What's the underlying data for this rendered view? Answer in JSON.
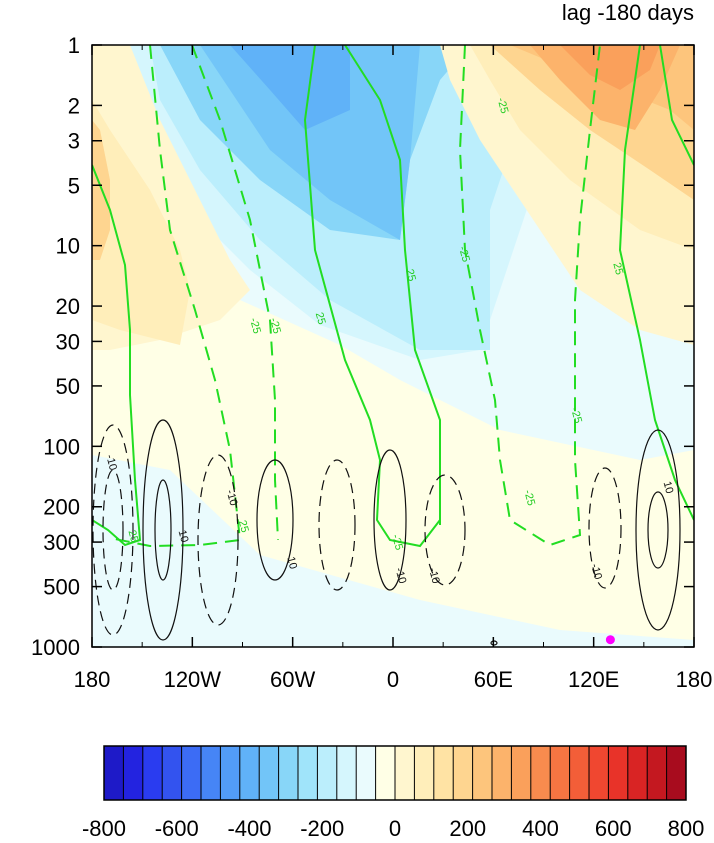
{
  "chart_data": {
    "type": "heatmap",
    "title": "lag -180 days",
    "x_axis": {
      "ticks": [
        -180,
        -120,
        -60,
        0,
        60,
        120,
        180
      ],
      "tick_labels": [
        "180",
        "120W",
        "60W",
        "0",
        "60E",
        "120E",
        "180"
      ],
      "range": [
        -180,
        180
      ]
    },
    "y_axis": {
      "scale": "log",
      "reversed": true,
      "range": [
        1000,
        1
      ],
      "ticks": [
        1,
        2,
        3,
        5,
        10,
        20,
        30,
        50,
        100,
        200,
        300,
        500,
        1000
      ],
      "tick_labels": [
        "1",
        "2",
        "3",
        "5",
        "10",
        "20",
        "30",
        "50",
        "100",
        "200",
        "300",
        "500",
        "1000"
      ]
    },
    "colorbar": {
      "orientation": "horizontal",
      "min": -800,
      "max": 800,
      "labeled_values": [
        -800,
        -600,
        -400,
        -200,
        0,
        200,
        400,
        600,
        800
      ],
      "colors": [
        "#1e1ac8",
        "#2323e0",
        "#2a3cf0",
        "#3353ef",
        "#3c6cf5",
        "#4685f6",
        "#529cf7",
        "#60b2f8",
        "#72c5f8",
        "#88d6f8",
        "#a0e4fa",
        "#bbeefc",
        "#d5f6fd",
        "#eafbfd",
        "#ffffe6",
        "#fff6cf",
        "#ffeeba",
        "#ffe3a4",
        "#fed590",
        "#fdc57c",
        "#fcb36b",
        "#faa05b",
        "#f88b4e",
        "#f67542",
        "#f35e38",
        "#f04730",
        "#e83329",
        "#d92424",
        "#c41820",
        "#a80c1e"
      ]
    },
    "field_description_regions": [
      {
        "value_range": [
          -300,
          -200
        ],
        "x_range": [
          -50,
          15
        ],
        "p_range": [
          1,
          10
        ]
      },
      {
        "value_range": [
          -200,
          -100
        ],
        "x_range": [
          -90,
          35
        ],
        "p_range": [
          1,
          30
        ]
      },
      {
        "value_range": [
          200,
          300
        ],
        "x_range": [
          115,
          150
        ],
        "p_range": [
          1,
          2
        ]
      },
      {
        "value_range": [
          100,
          200
        ],
        "x_range": [
          40,
          180
        ],
        "p_range": [
          1,
          10
        ]
      },
      {
        "value_range": [
          0,
          100
        ],
        "x_range": [
          -180,
          180
        ],
        "p_range": [
          100,
          800
        ]
      }
    ],
    "line_contour_labels": {
      "green_solid": [
        "25"
      ],
      "green_dashed": [
        "-25"
      ],
      "black_solid": [
        "10"
      ],
      "black_dashed": [
        "-10"
      ]
    },
    "marker": {
      "lon": 130,
      "pressure": 920,
      "color": "#ff00ff"
    }
  }
}
